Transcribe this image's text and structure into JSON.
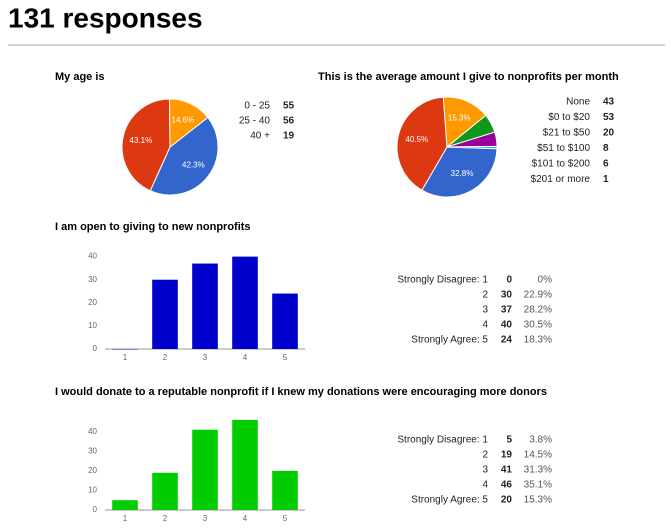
{
  "header": {
    "title": "131 responses"
  },
  "chart_data": [
    {
      "type": "pie",
      "title": "My age is",
      "categories": [
        "0 - 25",
        "25 - 40",
        "40 +"
      ],
      "values": [
        55,
        56,
        19
      ],
      "colors": [
        "#3366cc",
        "#dc3912",
        "#ff9900"
      ],
      "slice_labels": [
        "42.3%",
        "43.1%",
        "14.6%"
      ]
    },
    {
      "type": "pie",
      "title": "This is the average amount I give to nonprofits per month",
      "categories": [
        "None",
        "$0 to $20",
        "$21 to $50",
        "$51 to $100",
        "$101 to $200",
        "$201 or more"
      ],
      "values": [
        43,
        53,
        20,
        8,
        6,
        1
      ],
      "colors": [
        "#3366cc",
        "#dc3912",
        "#ff9900",
        "#109618",
        "#990099",
        "#3b9fd6"
      ],
      "slice_labels": [
        "32.8%",
        "40.5%",
        "15.3%",
        null,
        null,
        null
      ]
    },
    {
      "type": "bar",
      "title": "I am open to giving to new nonprofits",
      "categories": [
        "1",
        "2",
        "3",
        "4",
        "5"
      ],
      "values": [
        0,
        30,
        37,
        40,
        24
      ],
      "color": "#0000cc",
      "ylim": [
        0,
        42
      ],
      "yticks": [
        0,
        10,
        20,
        30,
        40
      ],
      "row_labels": [
        "Strongly Disagree: 1",
        "2",
        "3",
        "4",
        "Strongly Agree: 5"
      ],
      "percent_labels": [
        "0%",
        "22.9%",
        "28.2%",
        "30.5%",
        "18.3%"
      ]
    },
    {
      "type": "bar",
      "title": "I would donate to a reputable nonprofit if I knew my donations were encouraging more donors",
      "categories": [
        "1",
        "2",
        "3",
        "4",
        "5"
      ],
      "values": [
        5,
        19,
        41,
        46,
        20
      ],
      "color": "#00cc00",
      "ylim": [
        0,
        48
      ],
      "yticks": [
        0,
        10,
        20,
        30,
        40
      ],
      "row_labels": [
        "Strongly Disagree: 1",
        "2",
        "3",
        "4",
        "Strongly Agree: 5"
      ],
      "percent_labels": [
        "3.8%",
        "14.5%",
        "31.3%",
        "35.1%",
        "15.3%"
      ]
    }
  ]
}
